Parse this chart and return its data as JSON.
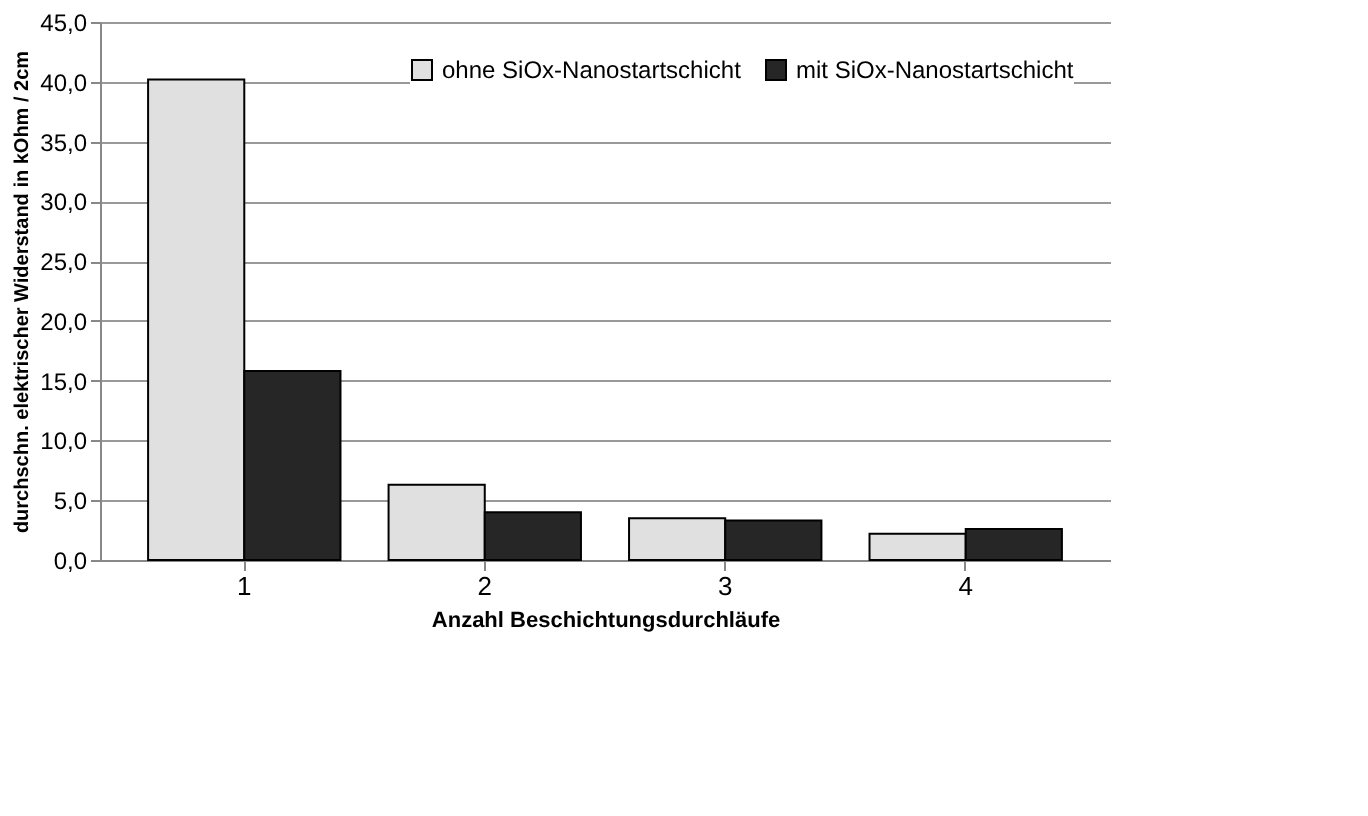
{
  "chart_data": {
    "type": "bar",
    "xlabel": "Anzahl Beschichtungsdurchläufe",
    "ylabel": "durchschn. elektrischer Widerstand in kOhm / 2cm",
    "categories": [
      "1",
      "2",
      "3",
      "4"
    ],
    "series": [
      {
        "name": "ohne SiOx-Nanostartschicht",
        "color": "#e0e0e0",
        "values": [
          40.2,
          6.3,
          3.5,
          2.2
        ]
      },
      {
        "name": "mit SiOx-Nanostartschicht",
        "color": "#262626",
        "values": [
          15.8,
          4.0,
          3.3,
          2.6
        ]
      }
    ],
    "ylim": [
      0,
      45
    ],
    "yticks": [
      {
        "value": 0,
        "label": "0,0"
      },
      {
        "value": 5,
        "label": "5,0"
      },
      {
        "value": 10,
        "label": "10,0"
      },
      {
        "value": 15,
        "label": "15,0"
      },
      {
        "value": 20,
        "label": "20,0"
      },
      {
        "value": 25,
        "label": "25,0"
      },
      {
        "value": 30,
        "label": "30,0"
      },
      {
        "value": 35,
        "label": "35,0"
      },
      {
        "value": 40,
        "label": "40,0"
      },
      {
        "value": 45,
        "label": "45,0"
      }
    ],
    "grid": "y",
    "legend": "top right"
  }
}
